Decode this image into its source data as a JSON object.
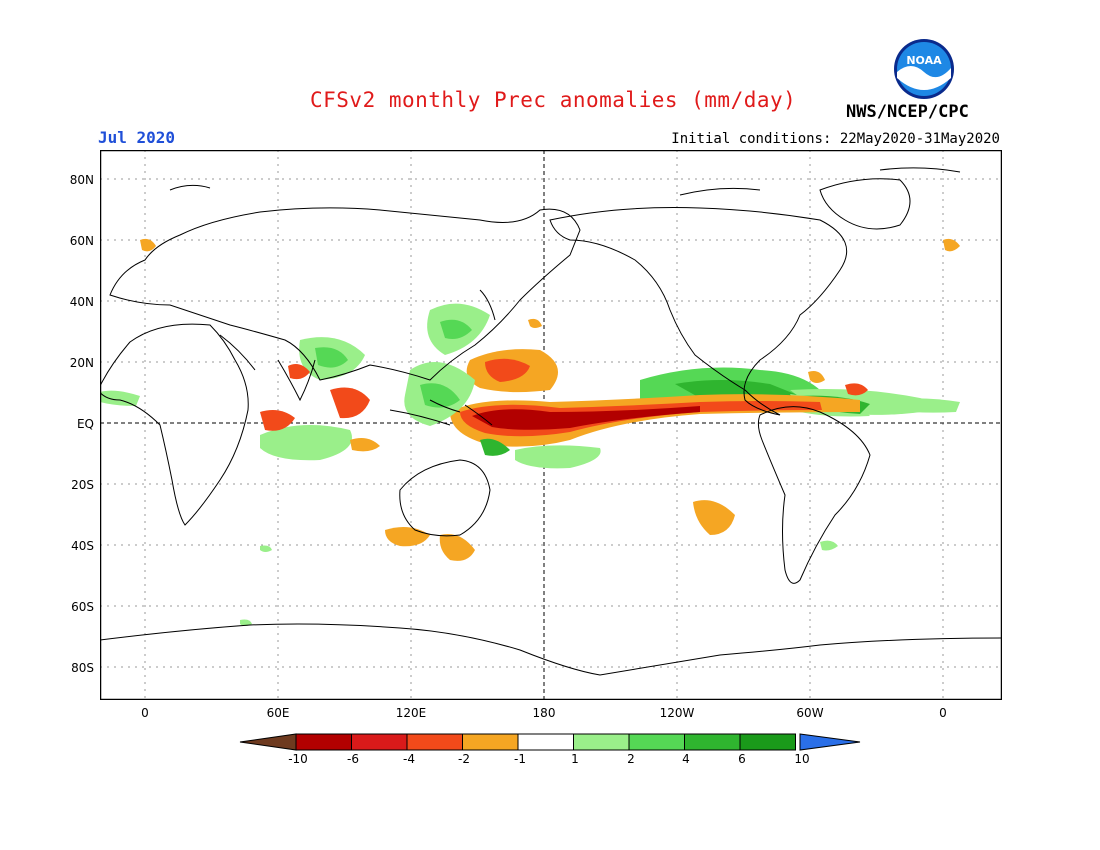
{
  "header": {
    "title": "CFSv2 monthly Prec anomalies (mm/day)",
    "month": "Jul 2020",
    "agency": "NWS/NCEP/CPC",
    "initial_conditions": "Initial conditions: 22May2020-31May2020",
    "logo_text": "NOAA"
  },
  "axes": {
    "lat_ticks": [
      "80N",
      "60N",
      "40N",
      "20N",
      "EQ",
      "20S",
      "40S",
      "60S",
      "80S"
    ],
    "lon_ticks": [
      "0",
      "60E",
      "120E",
      "180",
      "120W",
      "60W",
      "0"
    ]
  },
  "colorbar": {
    "labels": [
      "-10",
      "-6",
      "-4",
      "-2",
      "-1",
      "1",
      "2",
      "4",
      "6",
      "10"
    ],
    "colors": [
      "#6e3a1f",
      "#b20000",
      "#d91a1a",
      "#f24a1a",
      "#f5a623",
      "#ffffff",
      "#9aef8a",
      "#55d855",
      "#2fb52f",
      "#1a9a1a",
      "#2a6fe8"
    ]
  },
  "anomaly_colors": {
    "dry_strong": "#b20000",
    "dry_mod": "#f24a1a",
    "dry_weak": "#f5a623",
    "wet_weak": "#9aef8a",
    "wet_mod": "#55d855",
    "wet_strong": "#2fb52f"
  }
}
